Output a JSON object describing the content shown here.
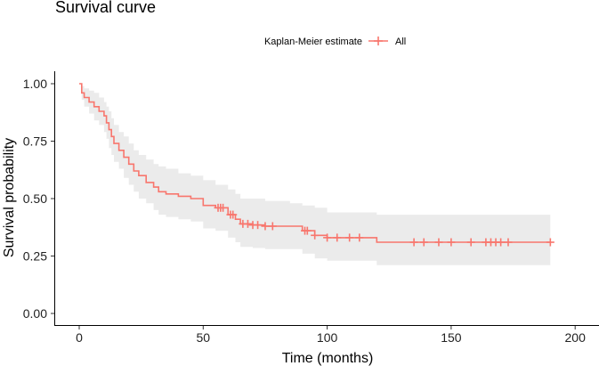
{
  "chart_data": {
    "type": "line",
    "title": "Survival curve",
    "xlabel": "Time (months)",
    "ylabel": "Survival probability",
    "xlim": [
      0,
      210
    ],
    "ylim": [
      -0.05,
      1.05
    ],
    "x_ticks": [
      0,
      50,
      100,
      150,
      200
    ],
    "x_tick_labels": [
      "0",
      "50",
      "100",
      "150",
      "200"
    ],
    "y_ticks": [
      0.0,
      0.25,
      0.5,
      0.75,
      1.0
    ],
    "y_tick_labels": [
      "0.00",
      "0.25",
      "0.50",
      "0.75",
      "1.00"
    ],
    "grid": false,
    "legend": {
      "title": "Kaplan-Meier estimate",
      "placement": "top",
      "entries": [
        "All"
      ]
    },
    "colors": {
      "line": "#F8766D",
      "band": "#EBEBEB"
    },
    "series": [
      {
        "name": "All",
        "style": "step",
        "x": [
          0,
          1,
          2,
          4,
          6,
          8,
          10,
          11,
          12,
          13,
          14,
          16,
          18,
          20,
          22,
          24,
          27,
          30,
          32,
          35,
          40,
          45,
          50,
          55,
          60,
          63,
          65,
          70,
          75,
          80,
          85,
          90,
          95,
          100,
          110,
          120,
          190
        ],
        "y": [
          1.0,
          0.96,
          0.94,
          0.92,
          0.9,
          0.88,
          0.86,
          0.83,
          0.8,
          0.77,
          0.74,
          0.71,
          0.68,
          0.65,
          0.62,
          0.6,
          0.57,
          0.55,
          0.53,
          0.52,
          0.51,
          0.5,
          0.47,
          0.46,
          0.43,
          0.41,
          0.39,
          0.385,
          0.38,
          0.38,
          0.38,
          0.36,
          0.34,
          0.33,
          0.33,
          0.31,
          0.31
        ],
        "ci_lower": [
          1.0,
          0.93,
          0.9,
          0.87,
          0.84,
          0.82,
          0.79,
          0.76,
          0.72,
          0.69,
          0.66,
          0.63,
          0.59,
          0.56,
          0.53,
          0.5,
          0.48,
          0.45,
          0.43,
          0.42,
          0.41,
          0.4,
          0.37,
          0.36,
          0.33,
          0.31,
          0.29,
          0.285,
          0.28,
          0.28,
          0.28,
          0.26,
          0.24,
          0.23,
          0.23,
          0.21,
          0.21
        ],
        "ci_upper": [
          1.0,
          0.99,
          0.98,
          0.97,
          0.96,
          0.94,
          0.92,
          0.9,
          0.88,
          0.85,
          0.82,
          0.79,
          0.77,
          0.74,
          0.71,
          0.69,
          0.67,
          0.65,
          0.64,
          0.63,
          0.61,
          0.6,
          0.58,
          0.56,
          0.54,
          0.52,
          0.5,
          0.5,
          0.49,
          0.49,
          0.48,
          0.47,
          0.46,
          0.44,
          0.44,
          0.43,
          0.43
        ],
        "censor_x": [
          56,
          57,
          58,
          61,
          62,
          66,
          68,
          70,
          72,
          75,
          78,
          91,
          92,
          95,
          100,
          104,
          109,
          113,
          135,
          139,
          145,
          150,
          158,
          164,
          166,
          168,
          170,
          173,
          190
        ]
      }
    ]
  }
}
